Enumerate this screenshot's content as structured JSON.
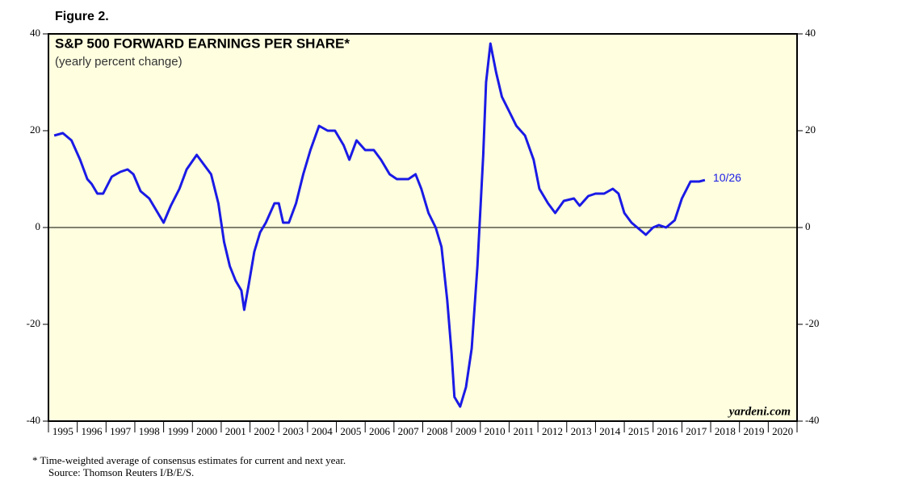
{
  "figure_label": "Figure 2.",
  "chart_data": {
    "type": "line",
    "title": "S&P 500 FORWARD EARNINGS PER SHARE*",
    "subtitle": "(yearly percent change)",
    "watermark": "yardeni.com",
    "end_label": "10/26",
    "series": [
      {
        "name": "S&P 500 forward earnings per share",
        "color": "#1a1ae6",
        "x": [
          1995.2,
          1995.5,
          1995.8,
          1996.1,
          1996.35,
          1996.5,
          1996.7,
          1996.9,
          1997.2,
          1997.5,
          1997.75,
          1997.95,
          1998.2,
          1998.5,
          1998.8,
          1999.0,
          1999.25,
          1999.55,
          1999.8,
          2000.15,
          2000.4,
          2000.65,
          2000.9,
          2001.1,
          2001.3,
          2001.5,
          2001.7,
          2001.8,
          2001.95,
          2002.15,
          2002.35,
          2002.55,
          2002.85,
          2003.0,
          2003.15,
          2003.35,
          2003.6,
          2003.85,
          2004.1,
          2004.4,
          2004.7,
          2004.95,
          2005.25,
          2005.45,
          2005.7,
          2006.0,
          2006.3,
          2006.55,
          2006.85,
          2007.1,
          2007.5,
          2007.75,
          2007.95,
          2008.2,
          2008.45,
          2008.65,
          2008.85,
          2009.0,
          2009.1,
          2009.3,
          2009.5,
          2009.7,
          2009.9,
          2010.1,
          2010.2,
          2010.35,
          2010.55,
          2010.75,
          2011.0,
          2011.25,
          2011.55,
          2011.85,
          2012.05,
          2012.35,
          2012.6,
          2012.9,
          2013.25,
          2013.45,
          2013.75,
          2014.0,
          2014.3,
          2014.6,
          2014.8,
          2015.0,
          2015.25,
          2015.55,
          2015.75,
          2016.0,
          2016.2,
          2016.45,
          2016.75,
          2017.0,
          2017.3,
          2017.6,
          2017.8
        ],
        "values": [
          19,
          19.5,
          18,
          14,
          10,
          9,
          7,
          7,
          10.5,
          11.5,
          12,
          11,
          7.5,
          6,
          3,
          1,
          4.5,
          8,
          12,
          15,
          13,
          11,
          5,
          -3,
          -8,
          -11,
          -13,
          -17,
          -12,
          -5,
          -1,
          1,
          5,
          5,
          1,
          1,
          5,
          11,
          16,
          21,
          20,
          20,
          17,
          14,
          18,
          16,
          16,
          14,
          11,
          10,
          10,
          11,
          8,
          3,
          0,
          -4,
          -15,
          -26,
          -35,
          -37,
          -33,
          -25,
          -8,
          15,
          30,
          38,
          32,
          27,
          24,
          21,
          19,
          14,
          8,
          5,
          3,
          5.5,
          6,
          4.5,
          6.5,
          7,
          7,
          8,
          7,
          3,
          1,
          -0.5,
          -1.5,
          0,
          0.5,
          0,
          1.5,
          6,
          9.5,
          9.5,
          9.8
        ]
      }
    ],
    "xlim": [
      1995,
      2021
    ],
    "xticks": [
      1995,
      1996,
      1997,
      1998,
      1999,
      2000,
      2001,
      2002,
      2003,
      2004,
      2005,
      2006,
      2007,
      2008,
      2009,
      2010,
      2011,
      2012,
      2013,
      2014,
      2015,
      2016,
      2017,
      2018,
      2019,
      2020
    ],
    "ylim": [
      -40,
      40
    ],
    "yticks": [
      -40,
      -20,
      0,
      20,
      40
    ],
    "background": "#ffffe0",
    "footnote": "*   Time-weighted average of consensus estimates for current and next year.",
    "source": "Source: Thomson Reuters I/B/E/S."
  }
}
